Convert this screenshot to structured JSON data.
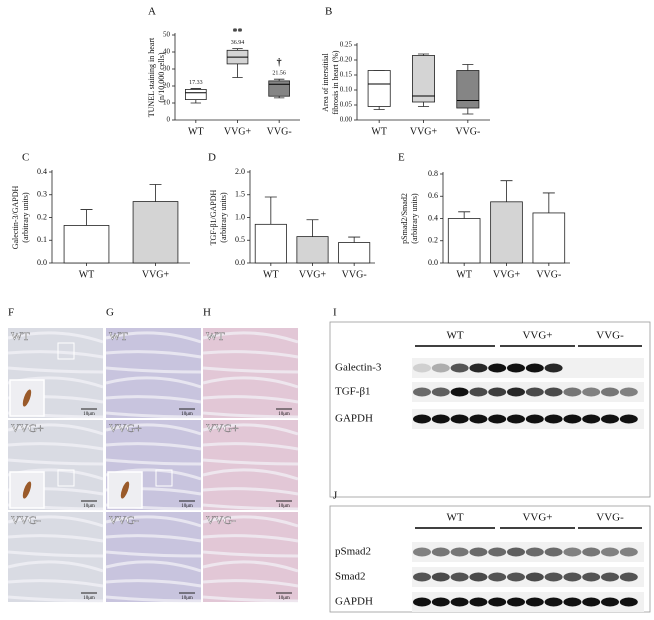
{
  "chart_data": [
    {
      "type": "box",
      "panel": "A",
      "ylabel": [
        "TUNEL staining in heart",
        "(n/10,000 cells)"
      ],
      "categories": [
        "WT",
        "VVG+",
        "VVG-"
      ],
      "colors": [
        "#ffffff",
        "#d4d4d4",
        "#858585"
      ],
      "boxes": [
        {
          "min": 10,
          "q1": 12,
          "median": 16,
          "q3": 18,
          "max": 18.5
        },
        {
          "min": 25,
          "q1": 33,
          "median": 37,
          "q3": 41,
          "max": 42
        },
        {
          "min": 13,
          "q1": 14,
          "median": 21,
          "q3": 23,
          "max": 24
        }
      ],
      "annotations": [
        {
          "x": "WT",
          "lines": [
            "17.33"
          ]
        },
        {
          "x": "VVG+",
          "lines": [
            "**",
            "36.94"
          ]
        },
        {
          "x": "VVG-",
          "lines": [
            "†",
            "21.56"
          ]
        }
      ],
      "ylim": [
        0,
        50
      ],
      "yticks": [
        0,
        10,
        20,
        30,
        40,
        50
      ]
    },
    {
      "type": "box",
      "panel": "B",
      "ylabel": [
        "Area of interstitial",
        "fibrosis in heart (%)"
      ],
      "categories": [
        "WT",
        "VVG+",
        "VVG-"
      ],
      "colors": [
        "#ffffff",
        "#d4d4d4",
        "#858585"
      ],
      "boxes": [
        {
          "min": 0.035,
          "q1": 0.045,
          "median": 0.12,
          "q3": 0.165,
          "max": 0.165
        },
        {
          "min": 0.045,
          "q1": 0.06,
          "median": 0.08,
          "q3": 0.215,
          "max": 0.22
        },
        {
          "min": 0.02,
          "q1": 0.04,
          "median": 0.065,
          "q3": 0.165,
          "max": 0.185
        }
      ],
      "ylim": [
        0,
        0.25
      ],
      "yticks": [
        {
          "value": 0,
          "label": "0.00"
        },
        0.05,
        {
          "value": 0.1,
          "label": "0.10"
        },
        0.15,
        {
          "value": 0.2,
          "label": "0.20"
        },
        0.25
      ]
    },
    {
      "type": "bar",
      "panel": "C",
      "ylabel": [
        "Galectin-3/GAPDH",
        "(arbitrary units)"
      ],
      "categories": [
        "WT",
        "VVG+"
      ],
      "colors": [
        "#ffffff",
        "#d4d4d4"
      ],
      "values": [
        0.165,
        0.27
      ],
      "errors": [
        0.07,
        0.075
      ],
      "ylim": [
        0,
        0.4
      ],
      "yticks": [
        {
          "value": 0,
          "label": "0.0"
        },
        0.1,
        0.2,
        0.3,
        0.4
      ]
    },
    {
      "type": "bar",
      "panel": "D",
      "ylabel": [
        "TGF-β1/GAPDH",
        "(arbitrary units)"
      ],
      "categories": [
        "WT",
        "VVG+",
        "VVG-"
      ],
      "colors": [
        "#ffffff",
        "#d4d4d4",
        "#ffffff"
      ],
      "values": [
        0.85,
        0.58,
        0.45
      ],
      "errors": [
        0.6,
        0.37,
        0.12
      ],
      "ylim": [
        0,
        2
      ],
      "yticks": [
        {
          "value": 0,
          "label": "0.0"
        },
        0.5,
        {
          "value": 1,
          "label": "1.0"
        },
        1.5,
        {
          "value": 2,
          "label": "2.0"
        }
      ]
    },
    {
      "type": "bar",
      "panel": "E",
      "ylabel": [
        "pSmad2/Smad2",
        "(arbitrary units)"
      ],
      "categories": [
        "WT",
        "VVG+",
        "VVG-"
      ],
      "colors": [
        "#ffffff",
        "#d4d4d4",
        "#ffffff"
      ],
      "values": [
        0.4,
        0.55,
        0.45
      ],
      "errors": [
        0.06,
        0.19,
        0.18
      ],
      "ylim": [
        0,
        0.8
      ],
      "yticks": [
        {
          "value": 0,
          "label": "0.0"
        },
        0.2,
        0.4,
        0.6,
        0.8
      ]
    }
  ],
  "micrographs": {
    "panels": [
      "F",
      "G",
      "H"
    ],
    "rows": [
      "WT",
      "VVG+",
      "VVG-"
    ],
    "scale_bar": "10μm"
  },
  "blots": [
    {
      "panel": "I",
      "groups": [
        "WT",
        "VVG+",
        "VVG-"
      ],
      "bands": [
        "Galectin-3",
        "TGF-β1",
        "GAPDH"
      ]
    },
    {
      "panel": "J",
      "groups": [
        "WT",
        "VVG+",
        "VVG-"
      ],
      "bands": [
        "pSmad2",
        "Smad2",
        "GAPDH"
      ]
    }
  ]
}
